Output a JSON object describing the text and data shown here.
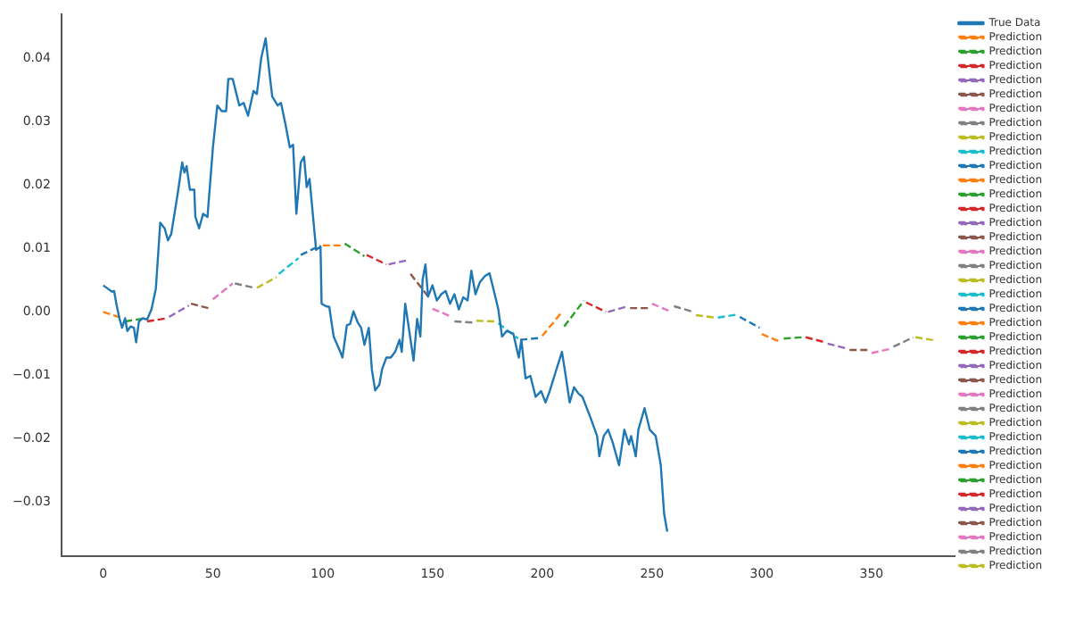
{
  "chart_data": {
    "type": "line",
    "marker": "none",
    "legend": "right",
    "grid": false,
    "xlim": [
      -19,
      388
    ],
    "xticks": [
      0,
      50,
      100,
      150,
      200,
      250,
      300,
      350
    ],
    "ylim": [
      -0.0386,
      0.047
    ],
    "yticks": [
      {
        "value": -0.03,
        "label": "−0.03"
      },
      {
        "value": -0.02,
        "label": "−0.02"
      },
      {
        "value": -0.01,
        "label": "−0.01"
      },
      {
        "value": 0,
        "label": "0.00"
      },
      {
        "value": 0.01,
        "label": "0.01"
      },
      {
        "value": 0.02,
        "label": "0.02"
      },
      {
        "value": 0.03,
        "label": "0.03"
      },
      {
        "value": 0.04,
        "label": "0.04"
      }
    ],
    "series": [
      {
        "name": "True Data",
        "color": "#1f77b4",
        "line_style": "solid",
        "x": [
          0,
          2,
          4,
          5,
          6,
          7.4,
          8.6,
          10,
          11,
          12.5,
          14,
          15,
          16.3,
          18,
          20,
          22,
          24,
          26,
          28,
          29.5,
          31,
          34,
          36,
          37,
          38,
          39.5,
          41.5,
          42,
          43.7,
          45.5,
          47.5,
          48.6,
          50,
          52,
          54,
          56,
          57,
          59,
          61,
          62,
          64,
          66,
          68.5,
          70,
          72,
          74,
          75.5,
          77,
          79.5,
          81,
          83,
          85,
          86.5,
          88,
          90,
          91.5,
          92.7,
          94,
          95,
          97,
          99,
          99.5,
          101.5,
          103,
          105,
          108,
          109,
          111,
          112.5,
          114,
          116,
          117.5,
          119,
          121,
          122.4,
          123.9,
          125.8,
          127,
          129,
          131,
          133,
          135,
          136,
          137.6,
          139.6,
          141.4,
          143,
          144.5,
          145.5,
          146.8,
          148,
          150,
          152,
          154,
          156,
          158,
          160,
          162,
          164,
          166,
          167.7,
          169.6,
          171.6,
          174,
          176,
          178,
          180,
          181.7,
          183.8,
          186.8,
          189.3,
          190.5,
          192.4,
          194.6,
          197,
          199.5,
          201.5,
          203.4,
          206,
          209,
          210.7,
          212.5,
          214.5,
          216.5,
          218.3,
          222,
          225,
          226,
          228,
          230,
          232,
          235,
          237.4,
          239.5,
          240.5,
          242.6,
          243.8,
          246.6,
          249,
          251.7,
          254,
          255.5,
          256.7,
          257
        ],
        "values": [
          0.0042,
          0.0037,
          0.0032,
          0.0033,
          0.0013,
          -0.001,
          -0.0025,
          -0.001,
          -0.003,
          -0.0023,
          -0.0025,
          -0.0048,
          -0.0015,
          -0.001,
          -0.0012,
          0.0004,
          0.0037,
          0.0141,
          0.0132,
          0.0113,
          0.0123,
          0.0188,
          0.0236,
          0.022,
          0.023,
          0.0193,
          0.0193,
          0.015,
          0.0132,
          0.0155,
          0.015,
          0.0198,
          0.026,
          0.0326,
          0.0317,
          0.0317,
          0.0368,
          0.0368,
          0.034,
          0.0326,
          0.033,
          0.031,
          0.0349,
          0.0344,
          0.0401,
          0.0432,
          0.0385,
          0.034,
          0.0326,
          0.033,
          0.0297,
          0.026,
          0.0264,
          0.0155,
          0.0236,
          0.0245,
          0.0197,
          0.021,
          0.0173,
          0.0098,
          0.0103,
          0.0013,
          0.0009,
          0.0008,
          -0.0039,
          -0.0063,
          -0.0072,
          -0.0021,
          -0.0019,
          0.0001,
          -0.0017,
          -0.0025,
          -0.0052,
          -0.0025,
          -0.0091,
          -0.0124,
          -0.0115,
          -0.0091,
          -0.0072,
          -0.0072,
          -0.0063,
          -0.0044,
          -0.0063,
          0.0013,
          -0.0034,
          -0.0077,
          -0.0011,
          -0.0039,
          0.0051,
          0.0075,
          0.0024,
          0.0042,
          0.0018,
          0.0028,
          0.0033,
          0.0013,
          0.0028,
          0.0004,
          0.0023,
          0.0018,
          0.0065,
          0.0028,
          0.0047,
          0.0057,
          0.0061,
          0.0033,
          0.0004,
          -0.0039,
          -0.003,
          -0.0034,
          -0.0072,
          -0.0044,
          -0.0105,
          -0.0101,
          -0.0134,
          -0.0125,
          -0.0143,
          -0.0125,
          -0.0096,
          -0.0063,
          -0.0101,
          -0.0143,
          -0.0119,
          -0.0129,
          -0.0134,
          -0.0167,
          -0.0196,
          -0.0228,
          -0.0196,
          -0.0186,
          -0.0205,
          -0.0242,
          -0.0186,
          -0.0209,
          -0.0196,
          -0.0228,
          -0.0186,
          -0.0152,
          -0.0186,
          -0.0196,
          -0.0242,
          -0.0318,
          -0.0342,
          -0.0347
        ]
      },
      {
        "name": "Prediction",
        "color": "#ff7f0e",
        "line_style": "dashed",
        "x": [
          0,
          9
        ],
        "values": [
          0.0,
          -0.001
        ]
      },
      {
        "name": "Prediction",
        "color": "#2ca02c",
        "line_style": "dashed",
        "x": [
          10,
          19
        ],
        "values": [
          -0.0015,
          -0.001
        ]
      },
      {
        "name": "Prediction",
        "color": "#d62728",
        "line_style": "dashed",
        "x": [
          20,
          29
        ],
        "values": [
          -0.0015,
          -0.001
        ]
      },
      {
        "name": "Prediction",
        "color": "#9467bd",
        "line_style": "dashed",
        "x": [
          30,
          39
        ],
        "values": [
          -0.0008,
          0.001
        ]
      },
      {
        "name": "Prediction",
        "color": "#8c564b",
        "line_style": "dashed",
        "x": [
          40,
          49
        ],
        "values": [
          0.0013,
          0.0005
        ]
      },
      {
        "name": "Prediction",
        "color": "#e377c2",
        "line_style": "dashed",
        "x": [
          50,
          59
        ],
        "values": [
          0.002,
          0.0045
        ]
      },
      {
        "name": "Prediction",
        "color": "#7f7f7f",
        "line_style": "dashed",
        "x": [
          60,
          69
        ],
        "values": [
          0.0045,
          0.0038
        ]
      },
      {
        "name": "Prediction",
        "color": "#bcbd22",
        "line_style": "dashed",
        "x": [
          70,
          79
        ],
        "values": [
          0.0038,
          0.0055
        ]
      },
      {
        "name": "Prediction",
        "color": "#17becf",
        "line_style": "dashed",
        "x": [
          80,
          89
        ],
        "values": [
          0.006,
          0.0085
        ]
      },
      {
        "name": "Prediction",
        "color": "#1f77b4",
        "line_style": "dashed",
        "x": [
          90,
          99
        ],
        "values": [
          0.009,
          0.0105
        ]
      },
      {
        "name": "Prediction",
        "color": "#ff7f0e",
        "line_style": "dashed",
        "x": [
          100,
          109
        ],
        "values": [
          0.0105,
          0.0105
        ]
      },
      {
        "name": "Prediction",
        "color": "#2ca02c",
        "line_style": "dashed",
        "x": [
          110,
          119
        ],
        "values": [
          0.0108,
          0.0088
        ]
      },
      {
        "name": "Prediction",
        "color": "#d62728",
        "line_style": "dashed",
        "x": [
          120,
          129
        ],
        "values": [
          0.009,
          0.0075
        ]
      },
      {
        "name": "Prediction",
        "color": "#9467bd",
        "line_style": "dashed",
        "x": [
          130,
          139
        ],
        "values": [
          0.0075,
          0.0082
        ]
      },
      {
        "name": "Prediction",
        "color": "#8c564b",
        "line_style": "dashed",
        "x": [
          140,
          149
        ],
        "values": [
          0.006,
          0.002
        ]
      },
      {
        "name": "Prediction",
        "color": "#e377c2",
        "line_style": "dashed",
        "x": [
          150,
          159
        ],
        "values": [
          0.0005,
          -0.0008
        ]
      },
      {
        "name": "Prediction",
        "color": "#7f7f7f",
        "line_style": "dashed",
        "x": [
          160,
          169
        ],
        "values": [
          -0.0015,
          -0.0017
        ]
      },
      {
        "name": "Prediction",
        "color": "#bcbd22",
        "line_style": "dashed",
        "x": [
          170,
          179
        ],
        "values": [
          -0.0014,
          -0.0015
        ]
      },
      {
        "name": "Prediction",
        "color": "#17becf",
        "line_style": "dashed",
        "x": [
          180,
          189
        ],
        "values": [
          -0.0018,
          -0.0042
        ]
      },
      {
        "name": "Prediction",
        "color": "#1f77b4",
        "line_style": "dashed",
        "x": [
          190,
          199
        ],
        "values": [
          -0.0044,
          -0.0041
        ]
      },
      {
        "name": "Prediction",
        "color": "#ff7f0e",
        "line_style": "dashed",
        "x": [
          200,
          209
        ],
        "values": [
          -0.0038,
          0.0
        ]
      },
      {
        "name": "Prediction",
        "color": "#2ca02c",
        "line_style": "dashed",
        "x": [
          210,
          219
        ],
        "values": [
          -0.0023,
          0.0018
        ]
      },
      {
        "name": "Prediction",
        "color": "#d62728",
        "line_style": "dashed",
        "x": [
          220,
          229
        ],
        "values": [
          0.0015,
          0.0
        ]
      },
      {
        "name": "Prediction",
        "color": "#9467bd",
        "line_style": "dashed",
        "x": [
          230,
          239
        ],
        "values": [
          0.0,
          0.0009
        ]
      },
      {
        "name": "Prediction",
        "color": "#8c564b",
        "line_style": "dashed",
        "x": [
          240,
          249
        ],
        "values": [
          0.0006,
          0.0006
        ]
      },
      {
        "name": "Prediction",
        "color": "#e377c2",
        "line_style": "dashed",
        "x": [
          250,
          259
        ],
        "values": [
          0.0013,
          0.0
        ]
      },
      {
        "name": "Prediction",
        "color": "#7f7f7f",
        "line_style": "dashed",
        "x": [
          260,
          269
        ],
        "values": [
          0.0009,
          0.0
        ]
      },
      {
        "name": "Prediction",
        "color": "#bcbd22",
        "line_style": "dashed",
        "x": [
          270,
          279
        ],
        "values": [
          -0.0005,
          -0.0009
        ]
      },
      {
        "name": "Prediction",
        "color": "#17becf",
        "line_style": "dashed",
        "x": [
          280,
          289
        ],
        "values": [
          -0.0009,
          -0.0004
        ]
      },
      {
        "name": "Prediction",
        "color": "#1f77b4",
        "line_style": "dashed",
        "x": [
          290,
          299
        ],
        "values": [
          -0.0008,
          -0.0025
        ]
      },
      {
        "name": "Prediction",
        "color": "#ff7f0e",
        "line_style": "dashed",
        "x": [
          300,
          309
        ],
        "values": [
          -0.0035,
          -0.0048
        ]
      },
      {
        "name": "Prediction",
        "color": "#2ca02c",
        "line_style": "dashed",
        "x": [
          310,
          319
        ],
        "values": [
          -0.0042,
          -0.004
        ]
      },
      {
        "name": "Prediction",
        "color": "#d62728",
        "line_style": "dashed",
        "x": [
          320,
          329
        ],
        "values": [
          -0.004,
          -0.0048
        ]
      },
      {
        "name": "Prediction",
        "color": "#9467bd",
        "line_style": "dashed",
        "x": [
          330,
          339
        ],
        "values": [
          -0.005,
          -0.0058
        ]
      },
      {
        "name": "Prediction",
        "color": "#8c564b",
        "line_style": "dashed",
        "x": [
          340,
          349
        ],
        "values": [
          -0.006,
          -0.006
        ]
      },
      {
        "name": "Prediction",
        "color": "#e377c2",
        "line_style": "dashed",
        "x": [
          350,
          359
        ],
        "values": [
          -0.0065,
          -0.0058
        ]
      },
      {
        "name": "Prediction",
        "color": "#7f7f7f",
        "line_style": "dashed",
        "x": [
          360,
          369
        ],
        "values": [
          -0.0055,
          -0.004
        ]
      },
      {
        "name": "Prediction",
        "color": "#bcbd22",
        "line_style": "dashed",
        "x": [
          370,
          379
        ],
        "values": [
          -0.004,
          -0.0045
        ]
      }
    ]
  }
}
